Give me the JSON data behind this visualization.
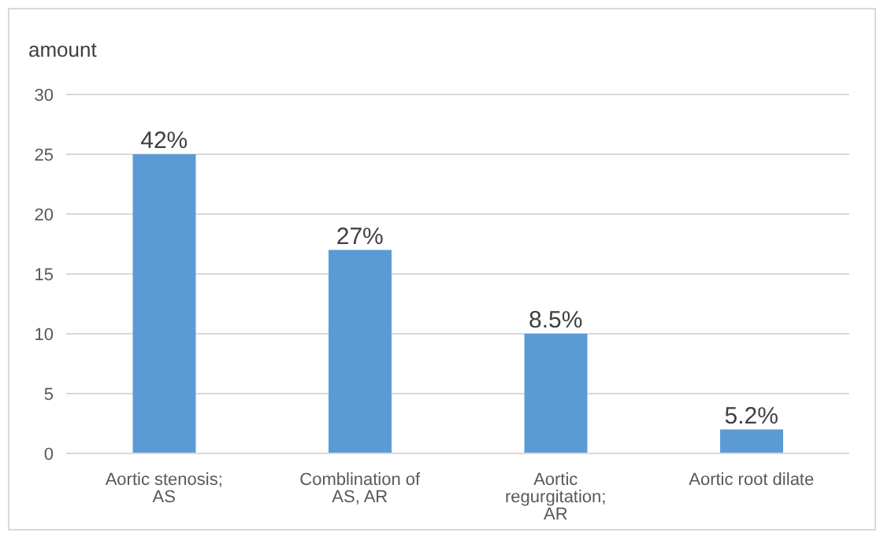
{
  "chart_data": {
    "type": "bar",
    "ylabel": "amount",
    "categories": [
      "Aortic stenosis; AS",
      "Comblination of AS,  AR",
      "Aortic regurgitation; AR",
      "Aortic root dilate"
    ],
    "values": [
      25,
      17,
      10,
      2
    ],
    "annotations": [
      {
        "text": "42%",
        "x": "Aortic stenosis; AS",
        "y": 25
      },
      {
        "text": "27%",
        "x": "Comblination of AS,  AR",
        "y": 17
      },
      {
        "text": "8.5%",
        "x": "Aortic regurgitation; AR",
        "y": 10
      },
      {
        "text": "5.2%",
        "x": "Aortic root dilate",
        "y": 2
      }
    ],
    "color": "#5b9bd5",
    "ylim": [
      0,
      30
    ],
    "yticks": [
      0,
      5,
      10,
      15,
      20,
      25,
      30
    ],
    "grid": "y",
    "legend": false
  }
}
